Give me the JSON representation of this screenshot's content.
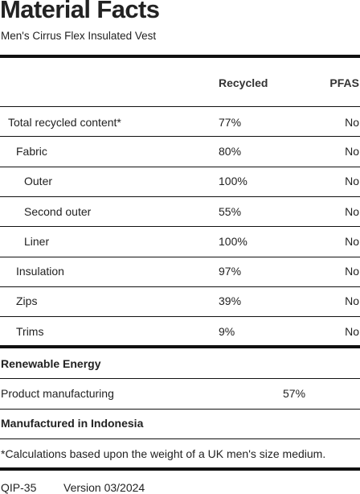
{
  "header": {
    "title": "Material Facts",
    "subtitle": "Men's Cirrus Flex Insulated Vest"
  },
  "table": {
    "columns": [
      "Recycled",
      "PFAS"
    ],
    "rows": [
      {
        "label": "Total recycled content*",
        "recycled": "77%",
        "pfas": "No"
      },
      {
        "label": "Fabric",
        "recycled": "80%",
        "pfas": "No"
      },
      {
        "label": "Outer",
        "recycled": "100%",
        "pfas": "No"
      },
      {
        "label": "Second outer",
        "recycled": "55%",
        "pfas": "No"
      },
      {
        "label": "Liner",
        "recycled": "100%",
        "pfas": "No"
      },
      {
        "label": "Insulation",
        "recycled": "97%",
        "pfas": "No"
      },
      {
        "label": "Zips",
        "recycled": "39%",
        "pfas": "No"
      },
      {
        "label": "Trims",
        "recycled": "9%",
        "pfas": "No"
      }
    ]
  },
  "renewable": {
    "heading": "Renewable Energy",
    "label": "Product manufacturing",
    "value": "57%"
  },
  "origin": "Manufactured in Indonesia",
  "footnote": "*Calculations based upon the weight of a UK men's size medium.",
  "footer": {
    "code": "QIP-35",
    "version": "Version 03/2024"
  }
}
